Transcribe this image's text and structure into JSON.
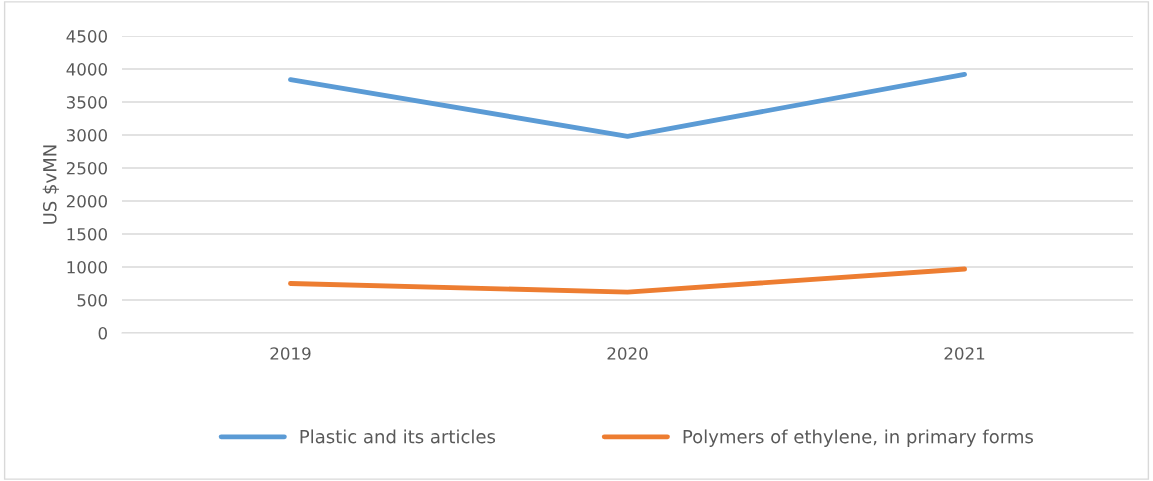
{
  "chart_data": {
    "type": "line",
    "ylabel": "US $vMN",
    "categories": [
      "2019",
      "2020",
      "2021"
    ],
    "series": [
      {
        "name": "Plastic and its articles",
        "color": "#5b9bd5",
        "values": [
          3840,
          2980,
          3920
        ]
      },
      {
        "name": "Polymers of ethylene, in primary forms",
        "color": "#ed7d31",
        "values": [
          750,
          620,
          970
        ]
      }
    ],
    "ylim": [
      0,
      4500
    ],
    "yticks": [
      0,
      500,
      1000,
      1500,
      2000,
      2500,
      3000,
      3500,
      4000,
      4500
    ],
    "grid": "y",
    "legend": "bottom",
    "marker": "none",
    "line_style": "solid"
  }
}
